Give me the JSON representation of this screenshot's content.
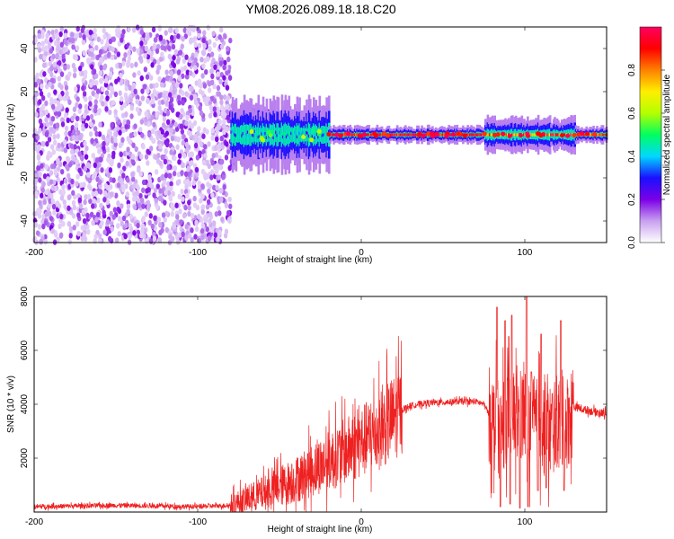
{
  "title": "YM08.2026.089.18.18.C20",
  "chart_data": [
    {
      "type": "heatmap",
      "name": "spectrogram",
      "xlabel": "Height of straight line (km)",
      "ylabel": "Frequency (Hz)",
      "xlim": [
        -200,
        150
      ],
      "ylim": [
        -50,
        50
      ],
      "xticks": [
        -200,
        -100,
        0,
        100
      ],
      "yticks": [
        -40,
        -20,
        0,
        20,
        40
      ],
      "colorbar": {
        "label": "Normalized spectral amplitude",
        "range": [
          0,
          1
        ],
        "ticks": [
          0.0,
          0.2,
          0.4,
          0.6,
          0.8
        ],
        "tick_labels": [
          "0.0",
          "0.2",
          "0.4",
          "0.6",
          "0.8"
        ],
        "colormap": [
          "#ffffff",
          "#c8a0f0",
          "#7b00e6",
          "#1a10ff",
          "#00d8ff",
          "#00ff60",
          "#b4ff00",
          "#ffee00",
          "#ff8000",
          "#ff0000",
          "#ff0060"
        ]
      },
      "regions": [
        {
          "x_range": [
            -200,
            -80
          ],
          "description": "broadband noise",
          "freq_range": [
            -50,
            50
          ],
          "amplitude": [
            0.05,
            0.2
          ]
        },
        {
          "x_range": [
            -80,
            -20
          ],
          "description": "spreading signal",
          "freq_half_width": 8,
          "amplitude": [
            0.2,
            0.5
          ]
        },
        {
          "x_range": [
            -20,
            75
          ],
          "description": "narrow carrier",
          "freq_half_width": 2,
          "amplitude": [
            0.8,
            1.0
          ]
        },
        {
          "x_range": [
            75,
            130
          ],
          "description": "scintillating carrier",
          "freq_half_width": 4,
          "amplitude": [
            0.6,
            1.0
          ]
        },
        {
          "x_range": [
            130,
            150
          ],
          "description": "narrow carrier",
          "freq_half_width": 2,
          "amplitude": [
            0.7,
            0.9
          ]
        }
      ]
    },
    {
      "type": "line",
      "name": "snr",
      "xlabel": "Height of straight line (km)",
      "ylabel": "SNR (10 * v/v)",
      "xlim": [
        -200,
        150
      ],
      "ylim": [
        0,
        8000
      ],
      "xticks": [
        -200,
        -100,
        0,
        100
      ],
      "yticks": [
        2000,
        4000,
        6000,
        8000
      ],
      "color": "#ee2020",
      "series": [
        {
          "name": "SNR",
          "x": [
            -200,
            -150,
            -100,
            -80,
            -60,
            -40,
            -20,
            0,
            10,
            20,
            25,
            30,
            40,
            60,
            70,
            75,
            80,
            85,
            90,
            95,
            100,
            105,
            110,
            115,
            120,
            125,
            130,
            140,
            150
          ],
          "values": [
            200,
            250,
            200,
            250,
            700,
            1200,
            1900,
            2600,
            3000,
            3500,
            3800,
            3950,
            4050,
            4100,
            4100,
            4000,
            3400,
            3000,
            3800,
            3500,
            3600,
            3300,
            3100,
            3000,
            3400,
            3200,
            3900,
            3750,
            3650
          ]
        }
      ],
      "peaks": [
        {
          "x": 83,
          "y": 7600
        },
        {
          "x": 88,
          "y": 7100
        },
        {
          "x": 92,
          "y": 7300
        },
        {
          "x": 101,
          "y": 8000
        },
        {
          "x": 110,
          "y": 6600
        },
        {
          "x": 122,
          "y": 7100
        },
        {
          "x": 104,
          "y": 5200
        }
      ],
      "troughs": [
        {
          "x": 85,
          "y": 200
        },
        {
          "x": 91,
          "y": 300
        },
        {
          "x": 97,
          "y": 150
        },
        {
          "x": 102,
          "y": 200
        },
        {
          "x": 108,
          "y": 800
        },
        {
          "x": 113,
          "y": 900
        },
        {
          "x": 124,
          "y": 800
        }
      ]
    }
  ]
}
